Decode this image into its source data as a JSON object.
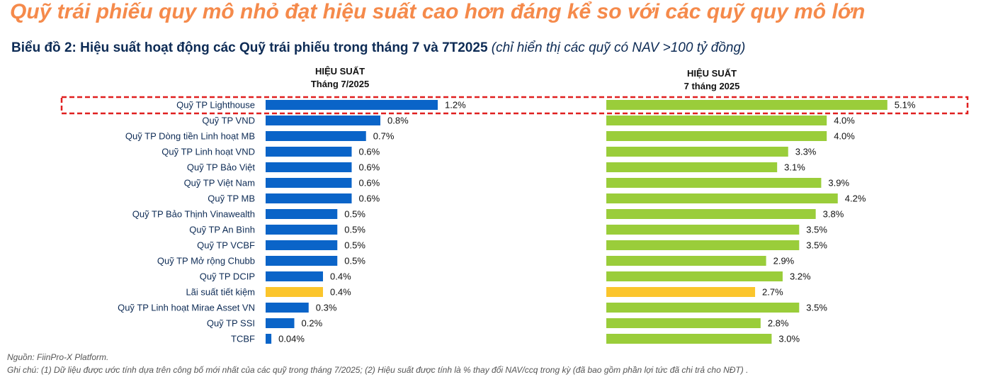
{
  "title": "Quỹ trái phiếu quy mô nhỏ đạt hiệu suất cao hơn đáng kể so với các quỹ quy mô lớn",
  "subtitle_bold": "Biểu đồ 2: Hiệu suất hoạt động các Quỹ trái phiếu trong tháng 7 và 7T2025",
  "subtitle_italic": "(chỉ hiển thị các quỹ có NAV >100 tỷ đồng)",
  "source": "Nguồn: FiinPro-X Platform.",
  "note": "Ghi chú: (1) Dữ liệu được ước tính dựa trên công bố mới nhất của các quỹ trong tháng 7/2025; (2) Hiệu suất được tính là % thay đổi NAV/ccq trong kỳ (đã bao gồm phần lợi tức đã chi trả cho NĐT) .",
  "colors": {
    "blue": "#0a64c8",
    "green": "#9acd3a",
    "yellow": "#fbc52c",
    "highlight": "#e02020"
  },
  "chart_data": {
    "type": "bar",
    "categories": [
      "Quỹ TP Lighthouse",
      "Quỹ TP VND",
      "Quỹ TP Dòng tiền Linh hoạt MB",
      "Quỹ TP Linh hoạt VND",
      "Quỹ TP Bảo Việt",
      "Quỹ TP Việt Nam",
      "Quỹ TP MB",
      "Quỹ TP Bảo Thịnh Vinawealth",
      "Quỹ TP An Bình",
      "Quỹ TP VCBF",
      "Quỹ TP Mở rộng Chubb",
      "Quỹ TP DCIP",
      "Lãi suất tiết kiệm",
      "Quỹ TP Linh hoạt Mirae Asset VN",
      "Quỹ TP SSI",
      "TCBF"
    ],
    "highlight": [
      "Quỹ TP Lighthouse"
    ],
    "benchmark": [
      "Lãi suất tiết kiệm"
    ],
    "series": [
      {
        "name": "HIỆU SUẤT Tháng 7/2025",
        "header": [
          "HIỆU SUẤT",
          "Tháng 7/2025"
        ],
        "values": [
          1.2,
          0.8,
          0.7,
          0.6,
          0.6,
          0.6,
          0.6,
          0.5,
          0.5,
          0.5,
          0.5,
          0.4,
          0.4,
          0.3,
          0.2,
          0.04
        ],
        "labels": [
          "1.2%",
          "0.8%",
          "0.7%",
          "0.6%",
          "0.6%",
          "0.6%",
          "0.6%",
          "0.5%",
          "0.5%",
          "0.5%",
          "0.5%",
          "0.4%",
          "0.4%",
          "0.3%",
          "0.2%",
          "0.04%"
        ]
      },
      {
        "name": "HIỆU SUẤT 7 tháng 2025",
        "header": [
          "HIỆU SUẤT",
          "7 tháng 2025"
        ],
        "values": [
          5.1,
          4.0,
          4.0,
          3.3,
          3.1,
          3.9,
          4.2,
          3.8,
          3.5,
          3.5,
          2.9,
          3.2,
          2.7,
          3.5,
          2.8,
          3.0
        ],
        "labels": [
          "5.1%",
          "4.0%",
          "4.0%",
          "3.3%",
          "3.1%",
          "3.9%",
          "4.2%",
          "3.8%",
          "3.5%",
          "3.5%",
          "2.9%",
          "3.2%",
          "2.7%",
          "3.5%",
          "2.8%",
          "3.0%"
        ]
      }
    ]
  }
}
